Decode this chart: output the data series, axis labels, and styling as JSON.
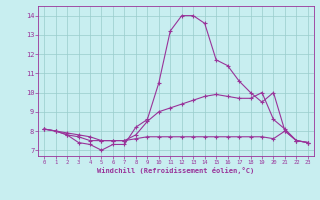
{
  "xlabel": "Windchill (Refroidissement éolien,°C)",
  "background_color": "#c8eef0",
  "line_color": "#993399",
  "grid_color": "#99cccc",
  "xlim": [
    -0.5,
    23.5
  ],
  "ylim": [
    6.7,
    14.5
  ],
  "xticks": [
    0,
    1,
    2,
    3,
    4,
    5,
    6,
    7,
    8,
    9,
    10,
    11,
    12,
    13,
    14,
    15,
    16,
    17,
    18,
    19,
    20,
    21,
    22,
    23
  ],
  "yticks": [
    7,
    8,
    9,
    10,
    11,
    12,
    13,
    14
  ],
  "line1_x": [
    0,
    1,
    2,
    3,
    4,
    5,
    6,
    7,
    8,
    9,
    10,
    11,
    12,
    13,
    14,
    15,
    16,
    17,
    18,
    19,
    20,
    21,
    22,
    23
  ],
  "line1_y": [
    8.1,
    8.0,
    7.8,
    7.4,
    7.3,
    7.0,
    7.3,
    7.3,
    8.2,
    8.6,
    10.5,
    13.2,
    14.0,
    14.0,
    13.6,
    11.7,
    11.4,
    10.6,
    10.0,
    9.5,
    10.0,
    8.0,
    7.5,
    7.4
  ],
  "line2_x": [
    0,
    1,
    2,
    3,
    4,
    5,
    6,
    7,
    8,
    9,
    10,
    11,
    12,
    13,
    14,
    15,
    16,
    17,
    18,
    19,
    20,
    21,
    22,
    23
  ],
  "line2_y": [
    8.1,
    8.0,
    7.8,
    7.7,
    7.5,
    7.5,
    7.5,
    7.5,
    7.8,
    8.5,
    9.0,
    9.2,
    9.4,
    9.6,
    9.8,
    9.9,
    9.8,
    9.7,
    9.7,
    10.0,
    8.6,
    8.1,
    7.5,
    7.4
  ],
  "line3_x": [
    0,
    1,
    2,
    3,
    4,
    5,
    6,
    7,
    8,
    9,
    10,
    11,
    12,
    13,
    14,
    15,
    16,
    17,
    18,
    19,
    20,
    21,
    22,
    23
  ],
  "line3_y": [
    8.1,
    8.0,
    7.9,
    7.8,
    7.7,
    7.5,
    7.5,
    7.5,
    7.6,
    7.7,
    7.7,
    7.7,
    7.7,
    7.7,
    7.7,
    7.7,
    7.7,
    7.7,
    7.7,
    7.7,
    7.6,
    8.0,
    7.5,
    7.4
  ]
}
